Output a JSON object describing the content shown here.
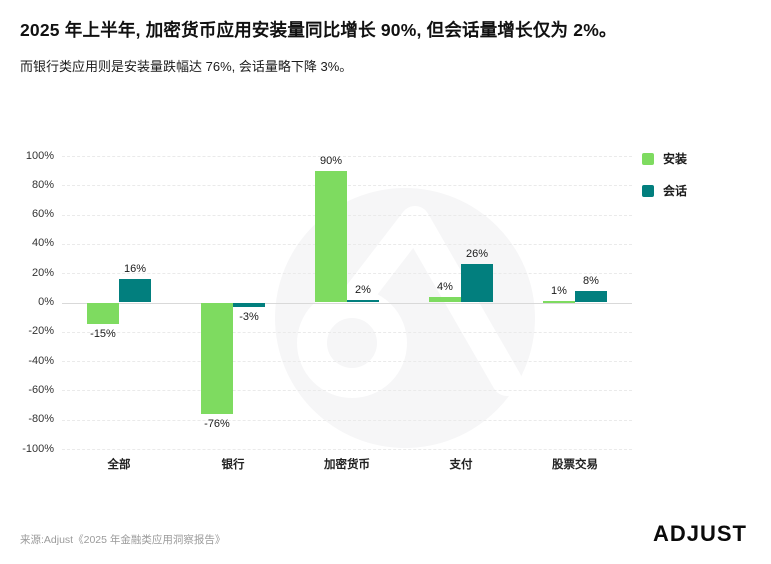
{
  "header": {
    "title": "2025 年上半年, 加密货币应用安装量同比增长 90%, 但会话量增长仅为 2%。",
    "subtitle": "而银行类应用则是安装量跌幅达 76%, 会话量略下降 3%。"
  },
  "footer": {
    "source": "来源:Adjust《2025 年金融类应用洞察报告》",
    "logo_text": "ADJUST"
  },
  "colors": {
    "install_green": "#7EDB60",
    "session_teal": "#027F7E",
    "watermark_gray": "#f6f6f7",
    "gridline": "#eaeaea",
    "zero_line": "#d9d9d9"
  },
  "chart_data": {
    "type": "bar",
    "categories": [
      "全部",
      "银行",
      "加密货币",
      "支付",
      "股票交易"
    ],
    "series": [
      {
        "name": "安装",
        "color": "#7EDB60",
        "values": [
          -15,
          -76,
          90,
          4,
          1
        ],
        "labels": [
          "-15%",
          "-76%",
          "90%",
          "4%",
          "1%"
        ]
      },
      {
        "name": "会话",
        "color": "#027F7E",
        "values": [
          16,
          -3,
          2,
          26,
          8
        ],
        "labels": [
          "16%",
          "-3%",
          "2%",
          "26%",
          "8%"
        ]
      }
    ],
    "ylim": [
      -100,
      100
    ],
    "yticks": [
      100,
      80,
      60,
      40,
      20,
      0,
      -20,
      -40,
      -60,
      -80,
      -100
    ],
    "ytick_labels": [
      "100%",
      "80%",
      "60%",
      "40%",
      "20%",
      "0%",
      "-20%",
      "-40%",
      "-60%",
      "-80%",
      "-100%"
    ],
    "grid": "horizontal-dashed",
    "legend_position": "top-right",
    "title": "2025 年上半年, 加密货币应用安装量同比增长 90%, 但会话量增长仅为 2%。"
  }
}
